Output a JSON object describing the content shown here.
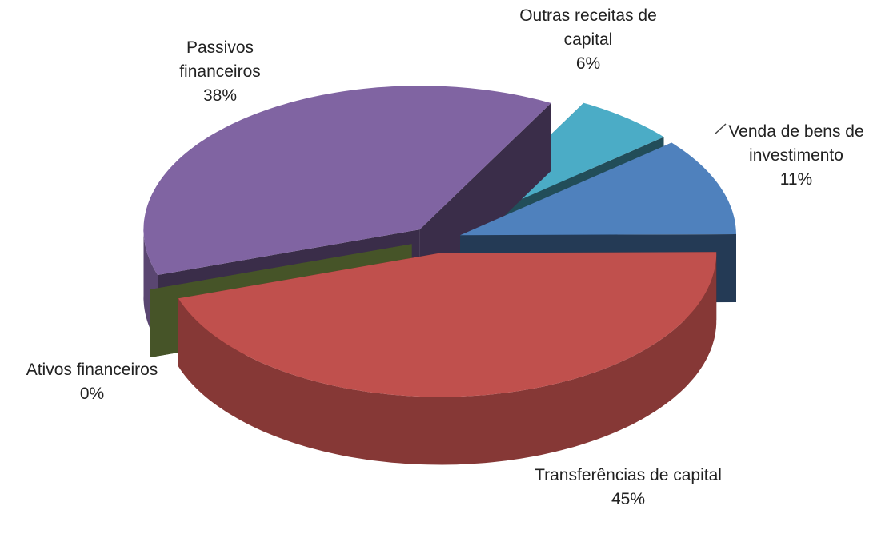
{
  "chart_data": {
    "type": "pie",
    "three_d": true,
    "categories": [
      "Venda de bens de investimento",
      "Transferências de capital",
      "Ativos financeiros",
      "Passivos financeiros",
      "Outras receitas de capital"
    ],
    "values": [
      11,
      45,
      0,
      38,
      6
    ],
    "value_labels": [
      "11%",
      "45%",
      "0%",
      "38%",
      "6%"
    ],
    "colors": [
      "#4f81bd",
      "#c0504d",
      "#9bbb59",
      "#8064a2",
      "#4bacc6"
    ]
  }
}
